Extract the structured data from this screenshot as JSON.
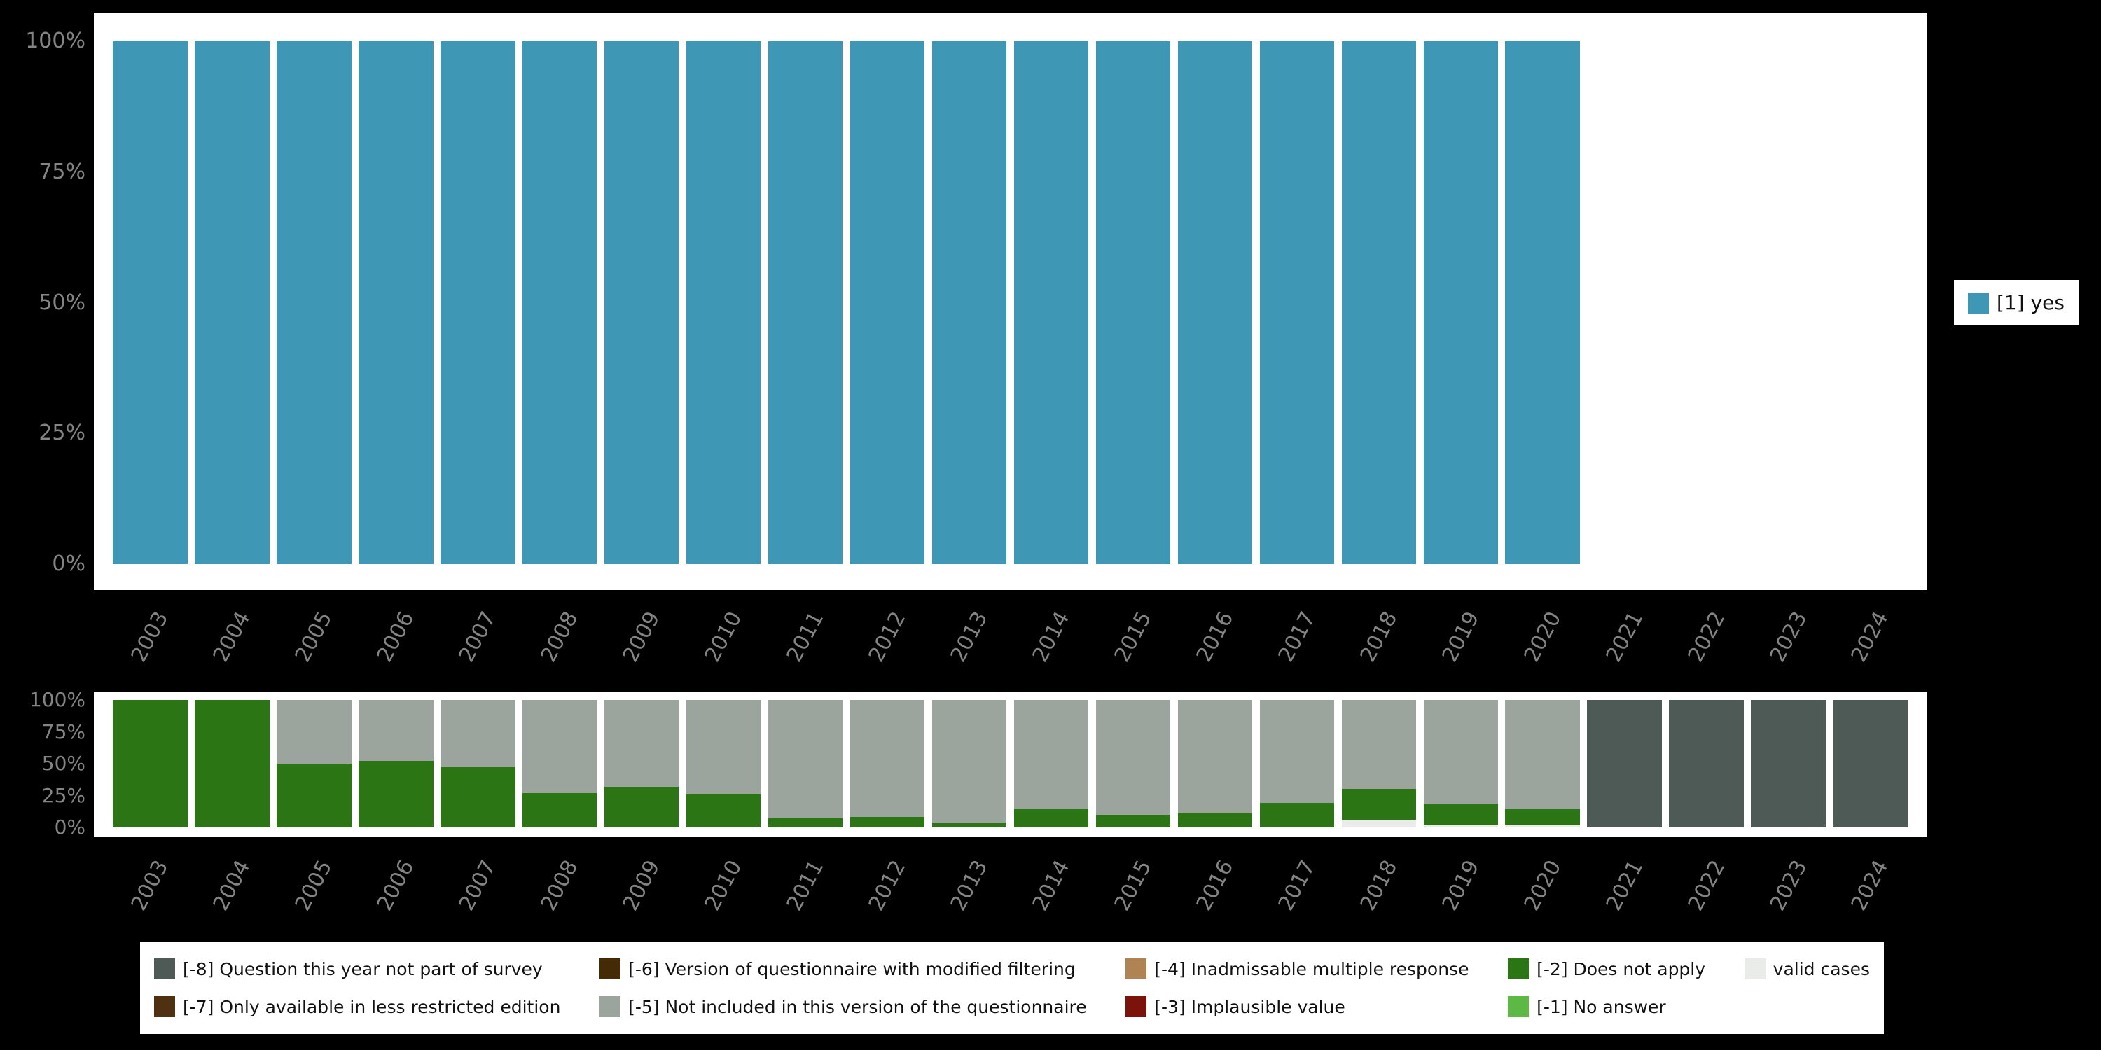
{
  "colors": {
    "background": "#000000",
    "panel": "#ffffff",
    "axis_text": "#848484",
    "legend_text": "#111111",
    "bar_yes": "#3e97b5",
    "does_not_apply": "#2b7514",
    "not_included": "#9ba49d",
    "not_part_of_survey": "#4d5a56"
  },
  "legend_top": {
    "items": [
      {
        "label": "[1] yes",
        "color": "#3e97b5"
      }
    ]
  },
  "legend_bottom": {
    "items": [
      {
        "label": "[-8] Question this year not part of survey",
        "color": "#4d5a56"
      },
      {
        "label": "[-7] Only available in less restricted edition",
        "color": "#4f3010"
      },
      {
        "label": "[-6] Version of questionnaire with modified filtering",
        "color": "#452a06"
      },
      {
        "label": "[-5] Not included in this version of the questionnaire",
        "color": "#9ba49d"
      },
      {
        "label": "[-4] Inadmissable multiple response",
        "color": "#b08355"
      },
      {
        "label": "[-3] Implausible value",
        "color": "#7b130a"
      },
      {
        "label": "[-2] Does not apply",
        "color": "#2b7514"
      },
      {
        "label": "[-1] No answer",
        "color": "#5cb944"
      },
      {
        "label": "valid cases",
        "color": "#e9ece8"
      }
    ]
  },
  "chart_data": [
    {
      "type": "bar",
      "title": "",
      "xlabel": "",
      "ylabel": "",
      "ylim": [
        0,
        100
      ],
      "grid": false,
      "legend_position": "right",
      "yticks_display": [
        "100%",
        "75%",
        "50%",
        "25%",
        "0%"
      ],
      "categories": [
        "2003",
        "2004",
        "2005",
        "2006",
        "2007",
        "2008",
        "2009",
        "2010",
        "2011",
        "2012",
        "2013",
        "2014",
        "2015",
        "2016",
        "2017",
        "2018",
        "2019",
        "2020",
        "2021",
        "2022",
        "2023",
        "2024"
      ],
      "series": [
        {
          "name": "[1] yes",
          "color": "#3e97b5",
          "values": [
            100,
            100,
            100,
            100,
            100,
            100,
            100,
            100,
            100,
            100,
            100,
            100,
            100,
            100,
            100,
            100,
            100,
            100,
            0,
            0,
            0,
            0
          ]
        }
      ]
    },
    {
      "type": "stacked-bar",
      "title": "",
      "xlabel": "",
      "ylabel": "",
      "ylim": [
        0,
        100
      ],
      "grid": false,
      "legend_position": "bottom",
      "yticks_display": [
        "100%",
        "75%",
        "50%",
        "25%",
        "0%"
      ],
      "categories": [
        "2003",
        "2004",
        "2005",
        "2006",
        "2007",
        "2008",
        "2009",
        "2010",
        "2011",
        "2012",
        "2013",
        "2014",
        "2015",
        "2016",
        "2017",
        "2018",
        "2019",
        "2020",
        "2021",
        "2022",
        "2023",
        "2024"
      ],
      "series": [
        {
          "name": "valid cases",
          "color": "#e9ece8",
          "values": [
            0,
            0,
            0,
            0,
            0,
            0,
            0,
            0,
            0,
            0,
            0,
            0,
            0,
            0,
            0,
            6,
            2,
            2,
            0,
            0,
            0,
            0
          ]
        },
        {
          "name": "[-1] No answer",
          "color": "#5cb944",
          "values": [
            0,
            0,
            0,
            0,
            0,
            0,
            0,
            0,
            0,
            0,
            0,
            0,
            0,
            0,
            0,
            0,
            0,
            0,
            0,
            0,
            0,
            0
          ]
        },
        {
          "name": "[-2] Does not apply",
          "color": "#2b7514",
          "values": [
            100,
            100,
            50,
            52,
            47,
            27,
            32,
            26,
            7,
            8,
            4,
            15,
            10,
            11,
            19,
            24,
            16,
            13,
            0,
            0,
            0,
            0
          ]
        },
        {
          "name": "[-3] Implausible value",
          "color": "#7b130a",
          "values": [
            0,
            0,
            0,
            0,
            0,
            0,
            0,
            0,
            0,
            0,
            0,
            0,
            0,
            0,
            0,
            0,
            0,
            0,
            0,
            0,
            0,
            0
          ]
        },
        {
          "name": "[-4] Inadmissable multiple response",
          "color": "#b08355",
          "values": [
            0,
            0,
            0,
            0,
            0,
            0,
            0,
            0,
            0,
            0,
            0,
            0,
            0,
            0,
            0,
            0,
            0,
            0,
            0,
            0,
            0,
            0
          ]
        },
        {
          "name": "[-5] Not included in this version of the questionnaire",
          "color": "#9ba49d",
          "values": [
            0,
            0,
            50,
            48,
            53,
            73,
            68,
            74,
            93,
            92,
            96,
            85,
            90,
            89,
            81,
            70,
            82,
            85,
            0,
            0,
            0,
            0
          ]
        },
        {
          "name": "[-6] Version of questionnaire with modified filtering",
          "color": "#452a06",
          "values": [
            0,
            0,
            0,
            0,
            0,
            0,
            0,
            0,
            0,
            0,
            0,
            0,
            0,
            0,
            0,
            0,
            0,
            0,
            0,
            0,
            0,
            0
          ]
        },
        {
          "name": "[-7] Only available in less restricted edition",
          "color": "#4f3010",
          "values": [
            0,
            0,
            0,
            0,
            0,
            0,
            0,
            0,
            0,
            0,
            0,
            0,
            0,
            0,
            0,
            0,
            0,
            0,
            0,
            0,
            0,
            0
          ]
        },
        {
          "name": "[-8] Question this year not part of survey",
          "color": "#4d5a56",
          "values": [
            0,
            0,
            0,
            0,
            0,
            0,
            0,
            0,
            0,
            0,
            0,
            0,
            0,
            0,
            0,
            0,
            0,
            0,
            100,
            100,
            100,
            100
          ]
        }
      ]
    }
  ]
}
